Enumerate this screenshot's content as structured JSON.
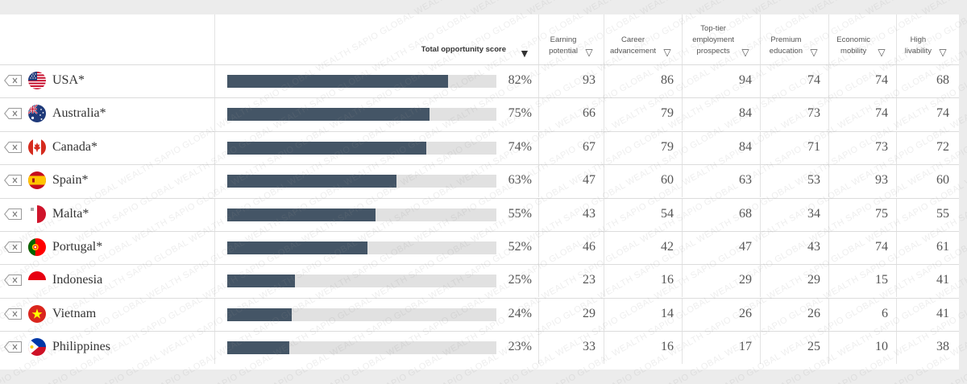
{
  "table": {
    "columns": {
      "total": "Total opportunity score",
      "metrics": [
        {
          "label_lines": [
            "Earning",
            "potential"
          ]
        },
        {
          "label_lines": [
            "Career",
            "advancement"
          ]
        },
        {
          "label_lines": [
            "Top-tier",
            "employment",
            "prospects"
          ]
        },
        {
          "label_lines": [
            "Premium",
            "education"
          ]
        },
        {
          "label_lines": [
            "Economic",
            "mobility"
          ]
        },
        {
          "label_lines": [
            "High",
            "livability"
          ]
        }
      ]
    },
    "rows": [
      {
        "country": "USA*",
        "flag": "usa-flag-icon",
        "total": 82,
        "total_label": "82%",
        "metrics": [
          "93",
          "86",
          "94",
          "74",
          "74",
          "68"
        ]
      },
      {
        "country": "Australia*",
        "flag": "australia-flag-icon",
        "total": 75,
        "total_label": "75%",
        "metrics": [
          "66",
          "79",
          "84",
          "73",
          "74",
          "74"
        ]
      },
      {
        "country": "Canada*",
        "flag": "canada-flag-icon",
        "total": 74,
        "total_label": "74%",
        "metrics": [
          "67",
          "79",
          "84",
          "71",
          "73",
          "72"
        ]
      },
      {
        "country": "Spain*",
        "flag": "spain-flag-icon",
        "total": 63,
        "total_label": "63%",
        "metrics": [
          "47",
          "60",
          "63",
          "53",
          "93",
          "60"
        ]
      },
      {
        "country": "Malta*",
        "flag": "malta-flag-icon",
        "total": 55,
        "total_label": "55%",
        "metrics": [
          "43",
          "54",
          "68",
          "34",
          "75",
          "55"
        ]
      },
      {
        "country": "Portugal*",
        "flag": "portugal-flag-icon",
        "total": 52,
        "total_label": "52%",
        "metrics": [
          "46",
          "42",
          "47",
          "43",
          "74",
          "61"
        ]
      },
      {
        "country": "Indonesia",
        "flag": "indonesia-flag-icon",
        "total": 25,
        "total_label": "25%",
        "metrics": [
          "23",
          "16",
          "29",
          "29",
          "15",
          "41"
        ]
      },
      {
        "country": "Vietnam",
        "flag": "vietnam-flag-icon",
        "total": 24,
        "total_label": "24%",
        "metrics": [
          "29",
          "14",
          "26",
          "26",
          "6",
          "41"
        ]
      },
      {
        "country": "Philippines",
        "flag": "philippines-flag-icon",
        "total": 23,
        "total_label": "23%",
        "metrics": [
          "33",
          "16",
          "17",
          "25",
          "10",
          "38"
        ]
      }
    ]
  },
  "watermark": "SAPIO GLOBAL WEALTH",
  "colors": {
    "bar_fill": "#445566",
    "bar_track": "#e1e1e1",
    "background": "#ececec"
  }
}
